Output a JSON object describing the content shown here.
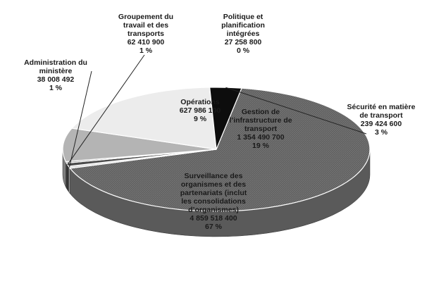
{
  "chart_data": {
    "type": "pie",
    "three_d": true,
    "slices": [
      {
        "key": "surv",
        "label_lines": [
          "Surveillance des",
          "organismes et des",
          "partenariats (inclut",
          "les consolidations",
          "d’organismes)"
        ],
        "value": 4859518400,
        "value_text": "4 859 518 400",
        "pct_text": "67 %",
        "color": "#6e6e6e"
      },
      {
        "key": "admin",
        "label_lines": [
          "Administration du",
          "ministère"
        ],
        "value": 38008492,
        "value_text": "38 008 492",
        "pct_text": "1 %",
        "color": "#d9d9d9"
      },
      {
        "key": "group",
        "label_lines": [
          "Groupement du",
          "travail et des",
          "transports"
        ],
        "value": 62410900,
        "value_text": "62 410 900",
        "pct_text": "1 %",
        "color": "#4a4a4a"
      },
      {
        "key": "pol",
        "label_lines": [
          "Politique et",
          "planification",
          "intégrées"
        ],
        "value": 27258800,
        "value_text": "27 258 800",
        "pct_text": "0 %",
        "color": "#8c8c8c"
      },
      {
        "key": "ops",
        "label_lines": [
          "Opérations"
        ],
        "value": 627986100,
        "value_text": "627 986 100",
        "pct_text": "9 %",
        "color": "#b4b4b4"
      },
      {
        "key": "infra",
        "label_lines": [
          "Gestion de",
          "l’infrastructure de",
          "transport"
        ],
        "value": 1354490700,
        "value_text": "1 354 490 700",
        "pct_text": "19 %",
        "color": "#ececec"
      },
      {
        "key": "secu",
        "label_lines": [
          "Sécurité en matière",
          "de transport"
        ],
        "value": 239424600,
        "value_text": "239 424 600",
        "pct_text": "3 %",
        "color": "#0d0d0d"
      }
    ]
  }
}
